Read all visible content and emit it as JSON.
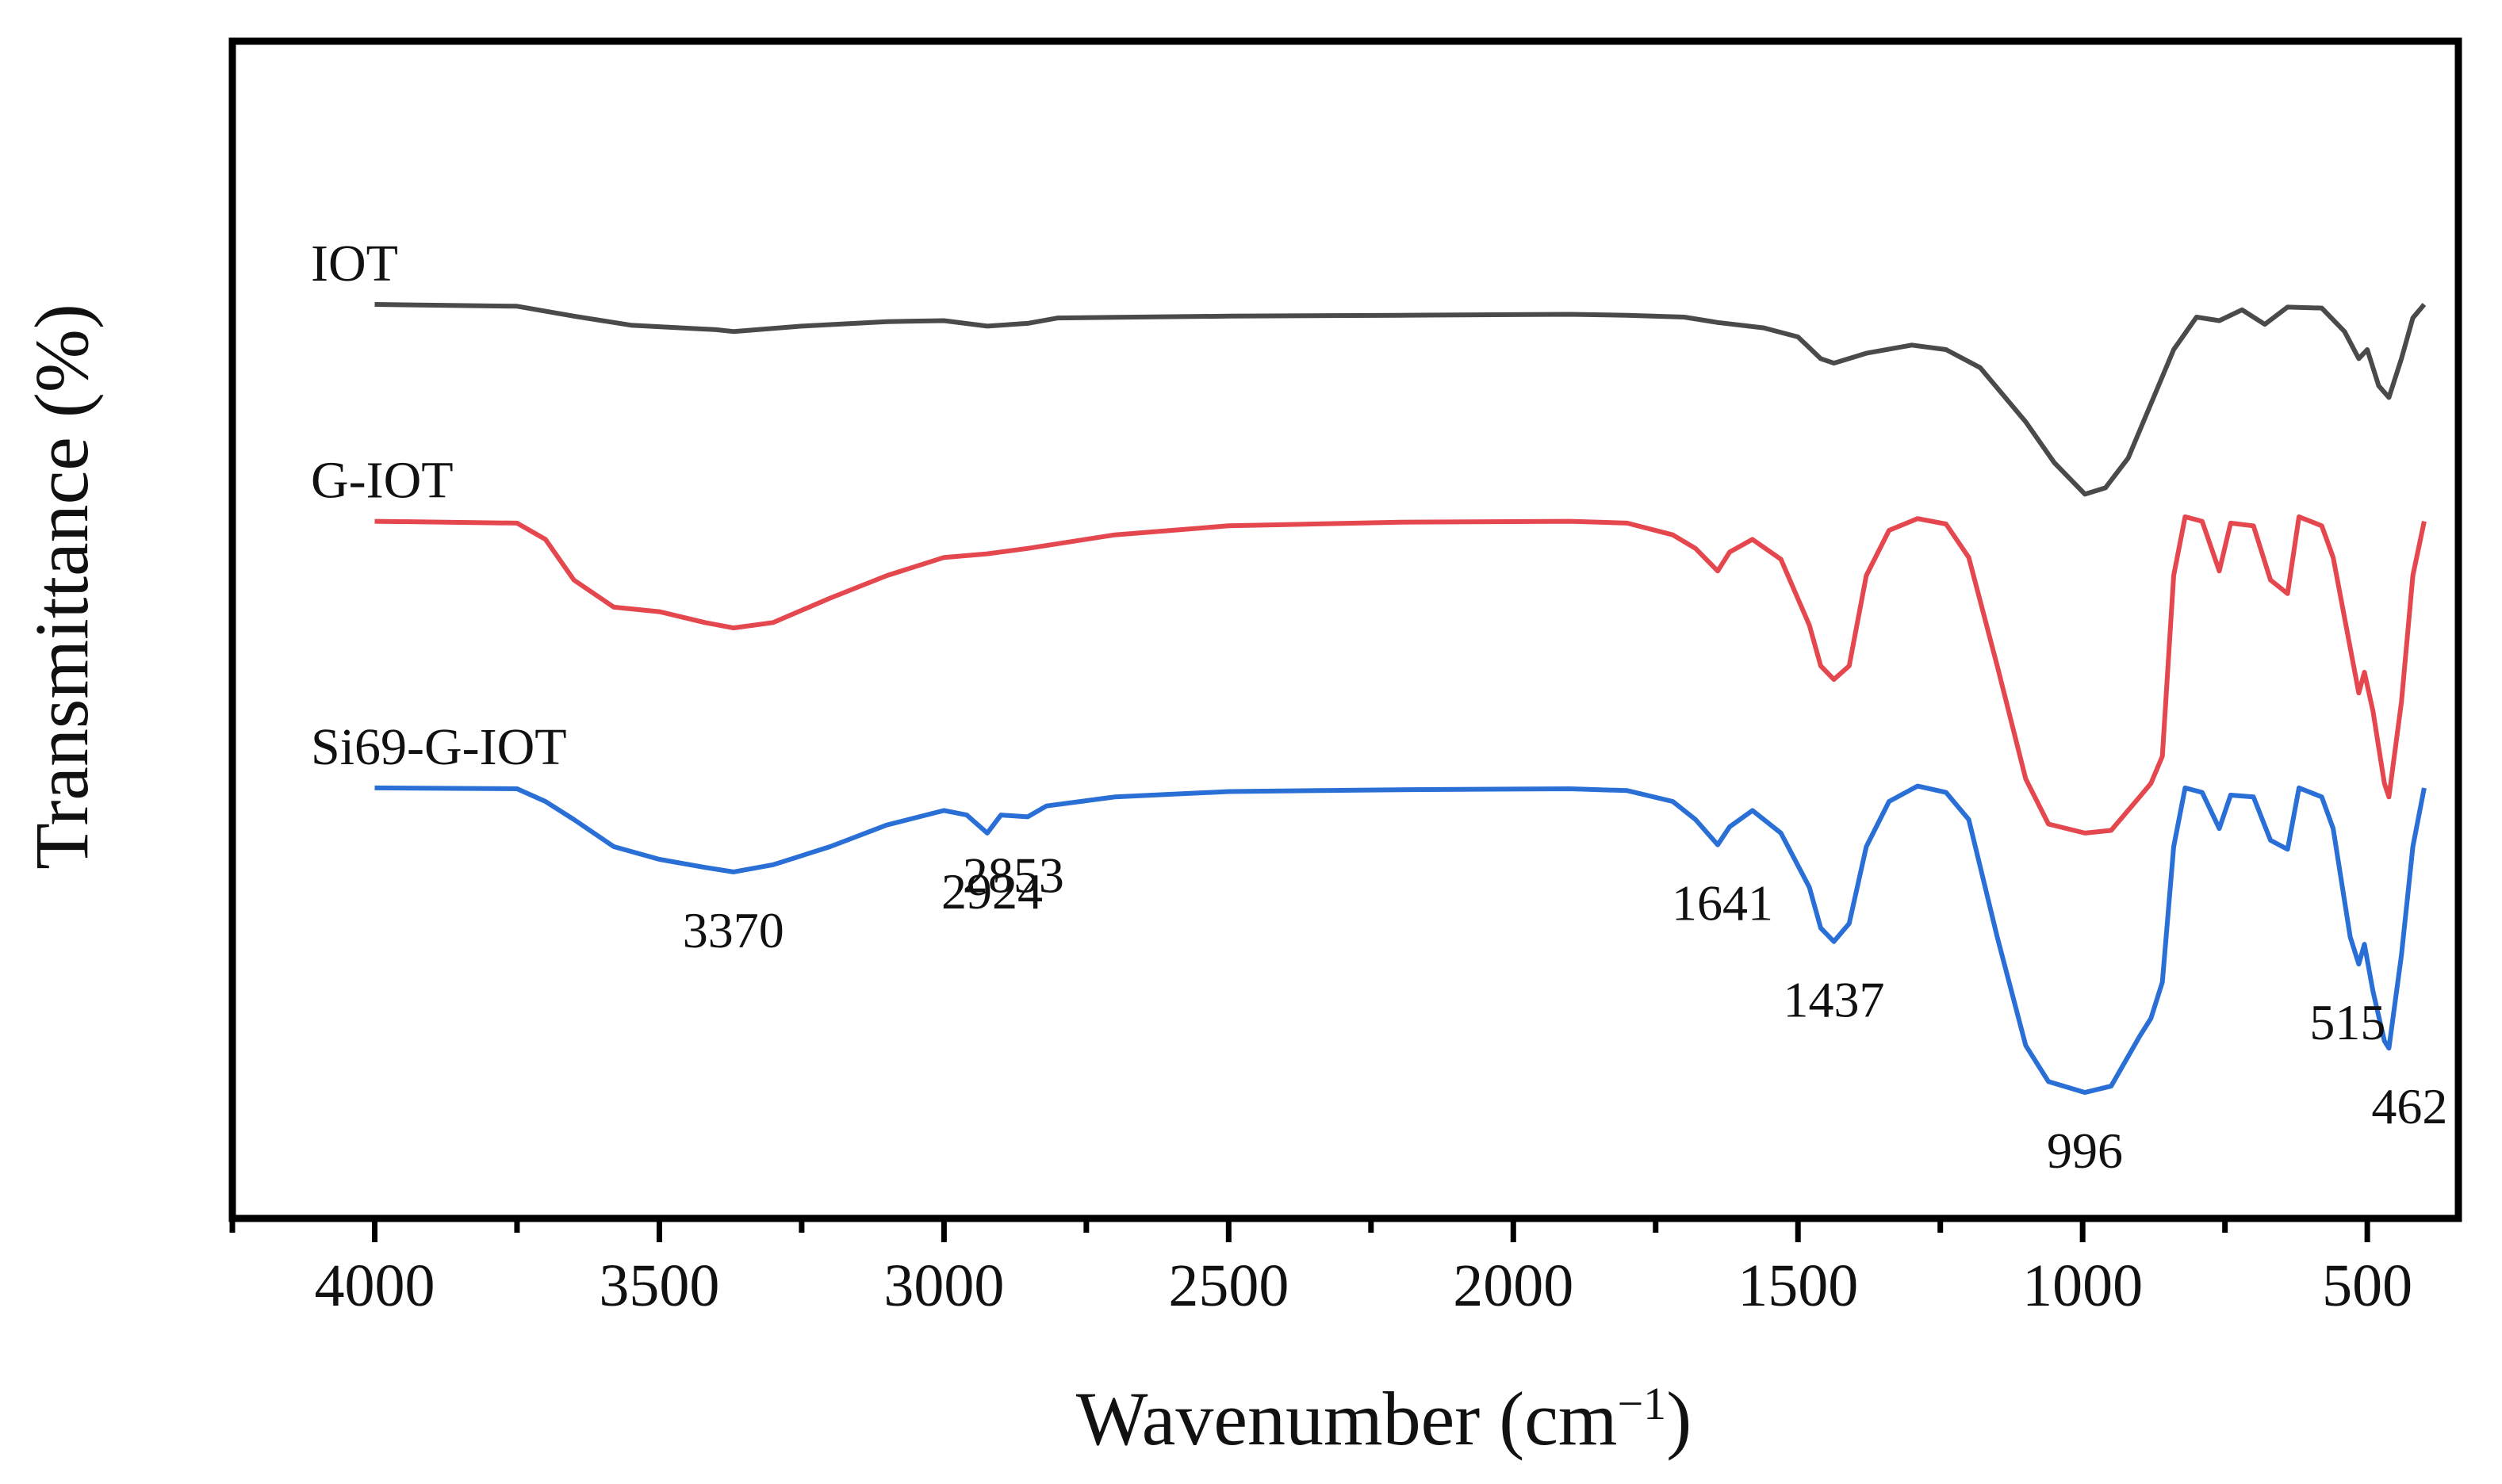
{
  "chart_data": {
    "type": "line",
    "title": "",
    "xlabel": "Wavenumber",
    "xlabel_unit": "(cm",
    "xlabel_unit_sup": "−1",
    "xlabel_unit_close": ")",
    "ylabel": "Transmittance (%)",
    "x_reversed": true,
    "xlim": [
      4250,
      340
    ],
    "ylim": [
      0,
      1
    ],
    "y_tick_labels_shown": false,
    "grid": false,
    "x_tick_labels": [
      "4000",
      "3500",
      "3000",
      "2500",
      "2000",
      "1500",
      "1000",
      "500"
    ],
    "x_ticks": [
      4000,
      3500,
      3000,
      2500,
      2000,
      1500,
      1000,
      500
    ],
    "series": [
      {
        "name": "IOT",
        "color": "#4a4a4a",
        "points": [
          [
            4000,
            0.9
          ],
          [
            3750,
            0.898
          ],
          [
            3650,
            0.887
          ],
          [
            3550,
            0.877
          ],
          [
            3400,
            0.872
          ],
          [
            3370,
            0.87
          ],
          [
            3250,
            0.876
          ],
          [
            3100,
            0.881
          ],
          [
            3000,
            0.882
          ],
          [
            2924,
            0.876
          ],
          [
            2853,
            0.879
          ],
          [
            2800,
            0.885
          ],
          [
            2500,
            0.887
          ],
          [
            2200,
            0.888
          ],
          [
            1900,
            0.889
          ],
          [
            1800,
            0.888
          ],
          [
            1700,
            0.886
          ],
          [
            1641,
            0.88
          ],
          [
            1560,
            0.874
          ],
          [
            1500,
            0.864
          ],
          [
            1460,
            0.84
          ],
          [
            1437,
            0.835
          ],
          [
            1380,
            0.846
          ],
          [
            1300,
            0.855
          ],
          [
            1240,
            0.85
          ],
          [
            1180,
            0.83
          ],
          [
            1100,
            0.77
          ],
          [
            1050,
            0.725
          ],
          [
            996,
            0.69
          ],
          [
            960,
            0.697
          ],
          [
            920,
            0.73
          ],
          [
            880,
            0.79
          ],
          [
            840,
            0.85
          ],
          [
            800,
            0.886
          ],
          [
            760,
            0.882
          ],
          [
            720,
            0.894
          ],
          [
            680,
            0.878
          ],
          [
            640,
            0.897
          ],
          [
            580,
            0.896
          ],
          [
            540,
            0.87
          ],
          [
            515,
            0.84
          ],
          [
            500,
            0.85
          ],
          [
            480,
            0.81
          ],
          [
            462,
            0.797
          ],
          [
            440,
            0.84
          ],
          [
            420,
            0.885
          ],
          [
            400,
            0.9
          ]
        ]
      },
      {
        "name": "G-IOT",
        "color": "#e4474e",
        "points": [
          [
            4000,
            0.66
          ],
          [
            3750,
            0.658
          ],
          [
            3700,
            0.64
          ],
          [
            3650,
            0.595
          ],
          [
            3580,
            0.565
          ],
          [
            3500,
            0.56
          ],
          [
            3420,
            0.548
          ],
          [
            3370,
            0.542
          ],
          [
            3300,
            0.548
          ],
          [
            3200,
            0.575
          ],
          [
            3100,
            0.6
          ],
          [
            3000,
            0.62
          ],
          [
            2924,
            0.624
          ],
          [
            2853,
            0.63
          ],
          [
            2700,
            0.645
          ],
          [
            2500,
            0.655
          ],
          [
            2200,
            0.659
          ],
          [
            1900,
            0.66
          ],
          [
            1800,
            0.658
          ],
          [
            1720,
            0.645
          ],
          [
            1680,
            0.63
          ],
          [
            1641,
            0.605
          ],
          [
            1620,
            0.626
          ],
          [
            1580,
            0.64
          ],
          [
            1530,
            0.618
          ],
          [
            1480,
            0.545
          ],
          [
            1460,
            0.5
          ],
          [
            1437,
            0.485
          ],
          [
            1410,
            0.5
          ],
          [
            1380,
            0.6
          ],
          [
            1340,
            0.65
          ],
          [
            1290,
            0.663
          ],
          [
            1240,
            0.657
          ],
          [
            1200,
            0.62
          ],
          [
            1150,
            0.5
          ],
          [
            1100,
            0.375
          ],
          [
            1060,
            0.325
          ],
          [
            996,
            0.315
          ],
          [
            950,
            0.318
          ],
          [
            900,
            0.355
          ],
          [
            880,
            0.37
          ],
          [
            860,
            0.4
          ],
          [
            840,
            0.6
          ],
          [
            820,
            0.665
          ],
          [
            790,
            0.66
          ],
          [
            760,
            0.605
          ],
          [
            740,
            0.658
          ],
          [
            700,
            0.655
          ],
          [
            670,
            0.595
          ],
          [
            640,
            0.58
          ],
          [
            620,
            0.665
          ],
          [
            580,
            0.655
          ],
          [
            560,
            0.62
          ],
          [
            530,
            0.52
          ],
          [
            515,
            0.47
          ],
          [
            505,
            0.493
          ],
          [
            490,
            0.45
          ],
          [
            470,
            0.37
          ],
          [
            462,
            0.355
          ],
          [
            440,
            0.46
          ],
          [
            420,
            0.6
          ],
          [
            400,
            0.66
          ]
        ]
      },
      {
        "name": "Si69-G-IOT",
        "color": "#2a6fd6",
        "points": [
          [
            4000,
            0.365
          ],
          [
            3750,
            0.364
          ],
          [
            3700,
            0.35
          ],
          [
            3650,
            0.33
          ],
          [
            3580,
            0.3
          ],
          [
            3500,
            0.286
          ],
          [
            3420,
            0.277
          ],
          [
            3370,
            0.272
          ],
          [
            3300,
            0.28
          ],
          [
            3200,
            0.3
          ],
          [
            3100,
            0.324
          ],
          [
            3000,
            0.34
          ],
          [
            2960,
            0.335
          ],
          [
            2924,
            0.315
          ],
          [
            2900,
            0.335
          ],
          [
            2853,
            0.333
          ],
          [
            2820,
            0.345
          ],
          [
            2700,
            0.355
          ],
          [
            2500,
            0.361
          ],
          [
            2200,
            0.363
          ],
          [
            1900,
            0.364
          ],
          [
            1800,
            0.362
          ],
          [
            1720,
            0.35
          ],
          [
            1680,
            0.33
          ],
          [
            1641,
            0.302
          ],
          [
            1620,
            0.322
          ],
          [
            1580,
            0.34
          ],
          [
            1530,
            0.315
          ],
          [
            1480,
            0.255
          ],
          [
            1460,
            0.21
          ],
          [
            1437,
            0.195
          ],
          [
            1410,
            0.215
          ],
          [
            1380,
            0.3
          ],
          [
            1340,
            0.35
          ],
          [
            1290,
            0.367
          ],
          [
            1240,
            0.36
          ],
          [
            1200,
            0.33
          ],
          [
            1150,
            0.2
          ],
          [
            1100,
            0.08
          ],
          [
            1060,
            0.04
          ],
          [
            996,
            0.028
          ],
          [
            950,
            0.035
          ],
          [
            900,
            0.09
          ],
          [
            880,
            0.11
          ],
          [
            860,
            0.15
          ],
          [
            840,
            0.3
          ],
          [
            820,
            0.365
          ],
          [
            790,
            0.36
          ],
          [
            760,
            0.32
          ],
          [
            740,
            0.357
          ],
          [
            700,
            0.355
          ],
          [
            670,
            0.307
          ],
          [
            640,
            0.297
          ],
          [
            620,
            0.365
          ],
          [
            580,
            0.355
          ],
          [
            560,
            0.32
          ],
          [
            530,
            0.2
          ],
          [
            515,
            0.17
          ],
          [
            505,
            0.192
          ],
          [
            490,
            0.14
          ],
          [
            470,
            0.085
          ],
          [
            462,
            0.077
          ],
          [
            440,
            0.18
          ],
          [
            420,
            0.3
          ],
          [
            400,
            0.365
          ]
        ]
      }
    ],
    "series_labels": [
      {
        "text": "IOT",
        "series": "IOT"
      },
      {
        "text": "G-IOT",
        "series": "G-IOT"
      },
      {
        "text": "Si69-G-IOT",
        "series": "Si69-G-IOT"
      }
    ],
    "annotations": [
      {
        "text": "3370",
        "x": 3370,
        "series": "Si69-G-IOT"
      },
      {
        "text": "2924",
        "x": 2924,
        "series": "Si69-G-IOT"
      },
      {
        "text": "2853",
        "x": 2853,
        "series": "Si69-G-IOT"
      },
      {
        "text": "1641",
        "x": 1641,
        "series": "Si69-G-IOT"
      },
      {
        "text": "1437",
        "x": 1437,
        "series": "Si69-G-IOT"
      },
      {
        "text": "996",
        "x": 996,
        "series": "Si69-G-IOT"
      },
      {
        "text": "515",
        "x": 515,
        "series": "Si69-G-IOT"
      },
      {
        "text": "462",
        "x": 462,
        "series": "Si69-G-IOT"
      }
    ]
  }
}
